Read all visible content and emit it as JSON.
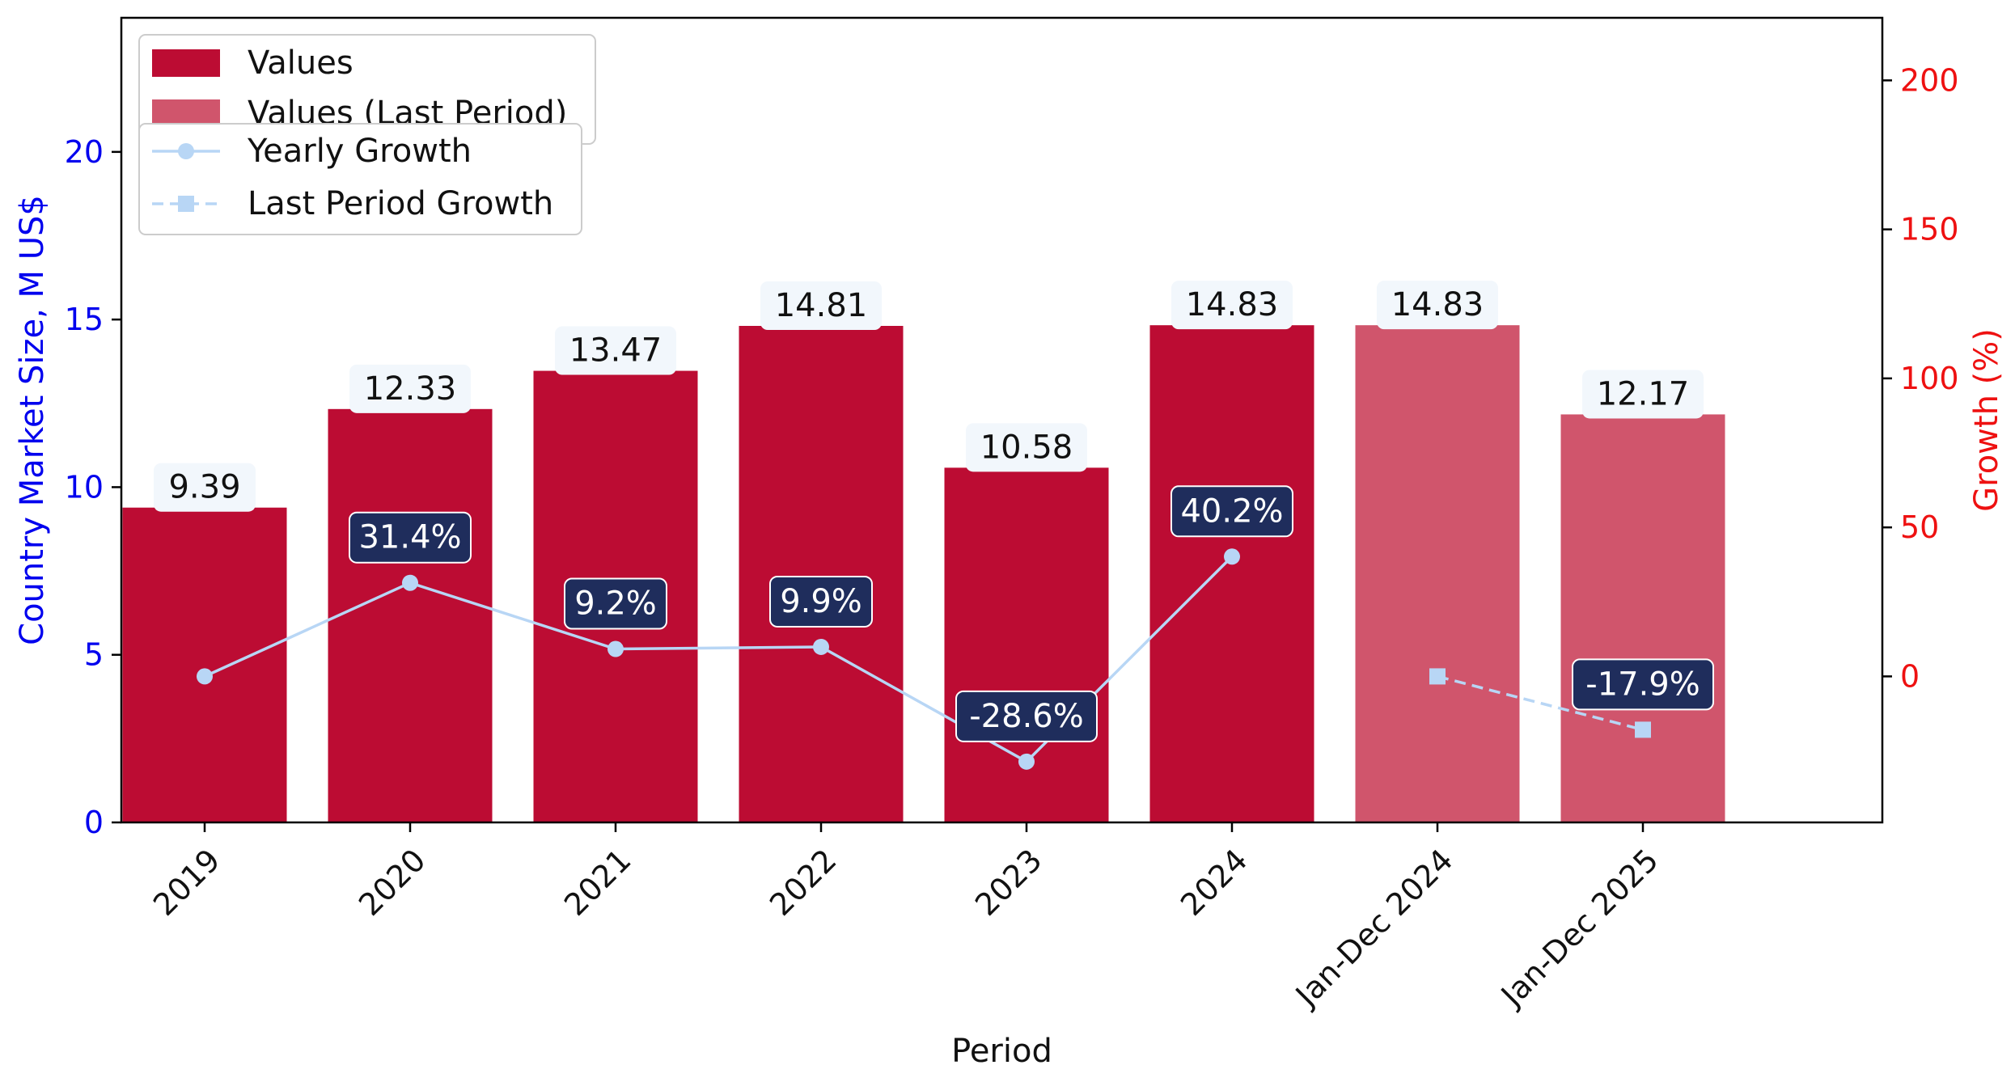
{
  "chart_data": {
    "type": "bar",
    "xlabel": "Period",
    "ylabel": "Country Market Size, M US$",
    "y2label": "Growth (%)",
    "categories": [
      "2019",
      "2020",
      "2021",
      "2022",
      "2023",
      "2024",
      "Jan-Dec 2024",
      "Jan-Dec 2025"
    ],
    "ylim": [
      0,
      24
    ],
    "y2lim": [
      -49,
      221
    ],
    "yticks": [
      0,
      5,
      10,
      15,
      20
    ],
    "y2ticks": [
      0,
      50,
      100,
      150,
      200
    ],
    "series": [
      {
        "name": "Values",
        "type": "bar",
        "color": "#bc0c33",
        "values": [
          9.39,
          12.33,
          13.47,
          14.81,
          10.58,
          14.83,
          null,
          null
        ],
        "labels": [
          "9.39",
          "12.33",
          "13.47",
          "14.81",
          "10.58",
          "14.83",
          null,
          null
        ]
      },
      {
        "name": "Values (Last Period)",
        "type": "bar",
        "color": "#d0556c",
        "values": [
          null,
          null,
          null,
          null,
          null,
          null,
          14.83,
          12.17
        ],
        "labels": [
          null,
          null,
          null,
          null,
          null,
          null,
          "14.83",
          "12.17"
        ]
      },
      {
        "name": "Yearly Growth",
        "type": "line",
        "axis": "right",
        "color": "#b8d6f5",
        "marker": "circle",
        "linestyle": "solid",
        "values": [
          0,
          31.4,
          9.2,
          9.9,
          -28.6,
          40.2,
          null,
          null
        ],
        "labels": [
          null,
          "31.4%",
          "9.2%",
          "9.9%",
          "-28.6%",
          "40.2%",
          null,
          null
        ]
      },
      {
        "name": "Last Period Growth",
        "type": "line",
        "axis": "right",
        "color": "#b8d6f5",
        "marker": "square",
        "linestyle": "dashed",
        "values": [
          null,
          null,
          null,
          null,
          null,
          null,
          0,
          -17.9
        ],
        "labels": [
          null,
          null,
          null,
          null,
          null,
          null,
          null,
          "-17.9%"
        ]
      }
    ],
    "legend": {
      "placement": "top-left",
      "bar_entries": [
        "Values",
        "Values (Last Period)"
      ],
      "line_entries": [
        "Yearly Growth",
        "Last Period Growth"
      ]
    },
    "colors": {
      "left_axis": "#0000ee",
      "right_axis": "#ee1111",
      "growth_label_bg": "#1f2d5c",
      "value_label_bg": "#f2f7fc"
    },
    "grid": false
  }
}
